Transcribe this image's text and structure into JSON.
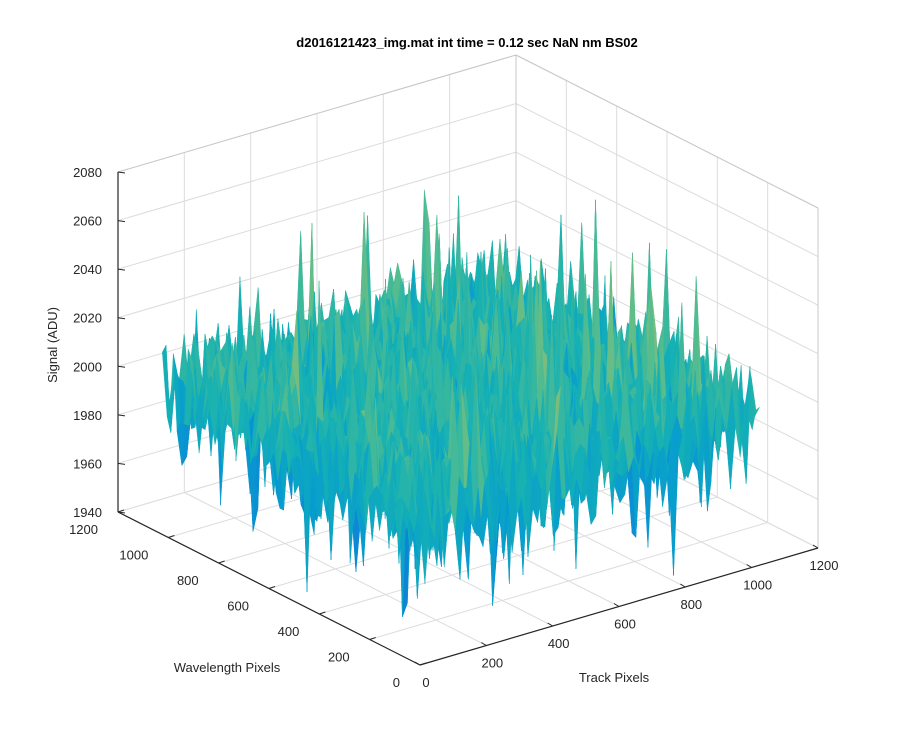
{
  "chart_data": {
    "type": "surface",
    "title": "d2016121423_img.mat int time = 0.12 sec  NaN nm BS02",
    "xlabel": "Track Pixels",
    "ylabel": "Wavelength Pixels",
    "zlabel": "Signal (ADU)",
    "xlim": [
      0,
      1200
    ],
    "ylim": [
      0,
      1200
    ],
    "zlim": [
      1940,
      2080
    ],
    "x_ticks": [
      0,
      200,
      400,
      600,
      800,
      1000,
      1200
    ],
    "y_ticks": [
      0,
      200,
      400,
      600,
      800,
      1000,
      1200
    ],
    "z_ticks": [
      1940,
      1960,
      1980,
      2000,
      2020,
      2040,
      2060,
      2080
    ],
    "x_data_range": [
      0,
      1024
    ],
    "y_data_range": [
      0,
      1024
    ],
    "surface_mean": 2000,
    "surface_min_approx": 1945,
    "surface_max_approx": 2070,
    "colormap": "parula",
    "grid": true,
    "box": "on"
  }
}
